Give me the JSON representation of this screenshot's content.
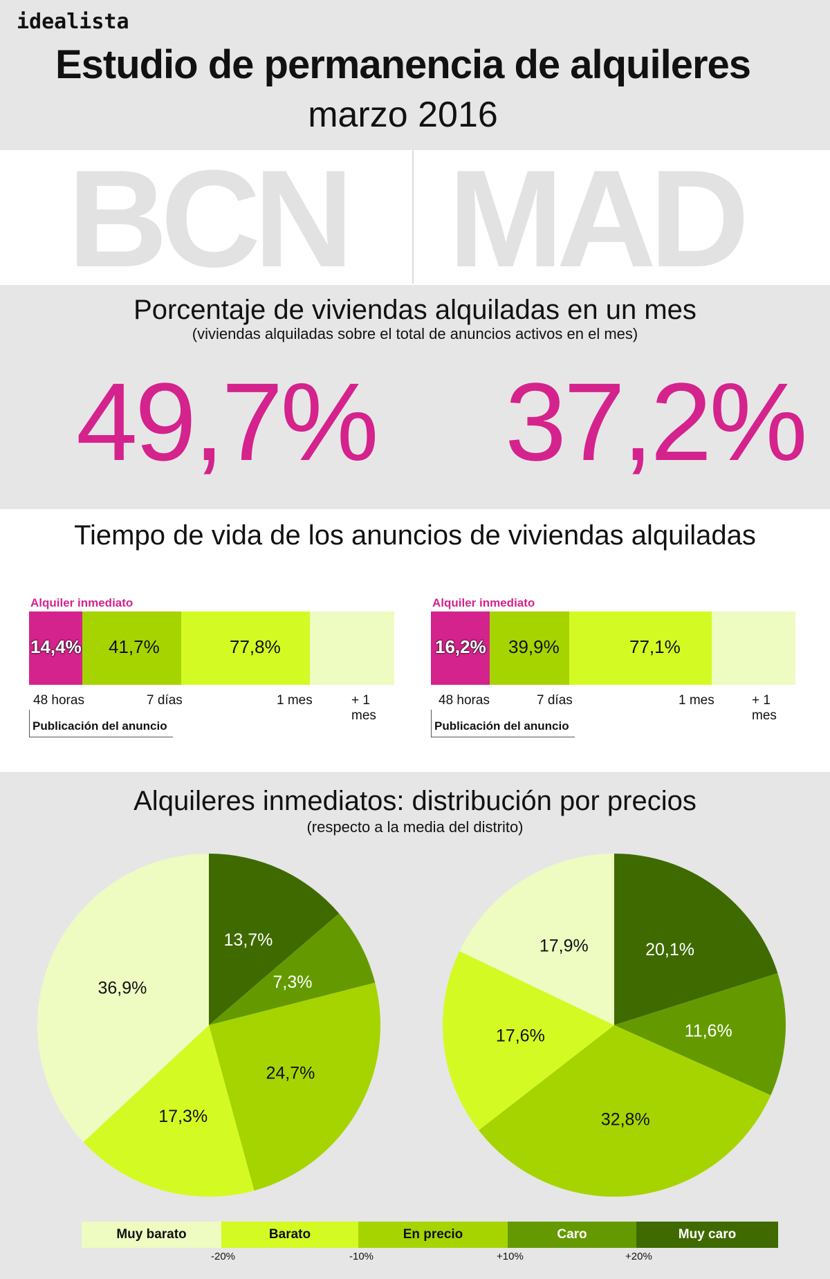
{
  "header": {
    "logo": "idealista",
    "title": "Estudio de permanencia de alquileres",
    "subtitle": "marzo 2016"
  },
  "cities": [
    "BCN",
    "MAD"
  ],
  "rent_pct": {
    "title": "Porcentaje de viviendas alquiladas en un mes",
    "subtitle": "(viviendas alquiladas sobre el total de anuncios activos en el mes)",
    "values": [
      "49,7%",
      "37,2%"
    ]
  },
  "lifetime": {
    "title": "Tiempo de vida de los anuncios de viviendas alquiladas",
    "label": "Alquiler inmediato",
    "ticks": [
      "48 horas",
      "7 días",
      "1 mes",
      "+ 1 mes"
    ],
    "publication": "Publicación del anuncio"
  },
  "prices": {
    "title": "Alquileres inmediatos: distribución por precios",
    "subtitle": "(respecto a la media del distrito)"
  },
  "legend": {
    "items": [
      {
        "label": "Muy barato",
        "color": "#eefbc1",
        "text": "#111111"
      },
      {
        "label": "Barato",
        "color": "#d4fa24",
        "text": "#111111"
      },
      {
        "label": "En precio",
        "color": "#a6d400",
        "text": "#111111"
      },
      {
        "label": "Caro",
        "color": "#649a00",
        "text": "#ffffff"
      },
      {
        "label": "Muy caro",
        "color": "#3f6a00",
        "text": "#ffffff"
      }
    ],
    "ticks": [
      "-20%",
      "-10%",
      "+10%",
      "+20%"
    ]
  },
  "colors": {
    "accent": "#d4238c",
    "muy_barato": "#eefbc1",
    "barato": "#d4fa24",
    "en_precio": "#a6d400",
    "caro": "#649a00",
    "muy_caro": "#3f6a00"
  },
  "chart_data": [
    {
      "type": "bar",
      "subtype": "stacked-cumulative",
      "city": "BCN",
      "categories": [
        "48 horas",
        "7 días",
        "1 mes",
        "+ 1 mes"
      ],
      "cumulative_values": [
        14.4,
        41.7,
        77.8,
        100
      ],
      "value_labels": [
        "14,4%",
        "41,7%",
        "77,8%",
        ""
      ]
    },
    {
      "type": "bar",
      "subtype": "stacked-cumulative",
      "city": "MAD",
      "categories": [
        "48 horas",
        "7 días",
        "1 mes",
        "+ 1 mes"
      ],
      "cumulative_values": [
        16.2,
        39.9,
        77.1,
        100
      ],
      "value_labels": [
        "16,2%",
        "39,9%",
        "77,1%",
        ""
      ]
    },
    {
      "type": "pie",
      "city": "BCN",
      "slices": [
        {
          "category": "Muy caro",
          "value": 13.7,
          "label": "13,7%"
        },
        {
          "category": "Caro",
          "value": 7.3,
          "label": "7,3%"
        },
        {
          "category": "En precio",
          "value": 24.7,
          "label": "24,7%"
        },
        {
          "category": "Barato",
          "value": 17.3,
          "label": "17,3%"
        },
        {
          "category": "Muy barato",
          "value": 36.9,
          "label": "36,9%"
        }
      ]
    },
    {
      "type": "pie",
      "city": "MAD",
      "slices": [
        {
          "category": "Muy caro",
          "value": 20.1,
          "label": "20,1%"
        },
        {
          "category": "Caro",
          "value": 11.6,
          "label": "11,6%"
        },
        {
          "category": "En precio",
          "value": 32.8,
          "label": "32,8%"
        },
        {
          "category": "Barato",
          "value": 17.6,
          "label": "17,6%"
        },
        {
          "category": "Muy barato",
          "value": 17.9,
          "label": "17,9%"
        }
      ]
    }
  ]
}
